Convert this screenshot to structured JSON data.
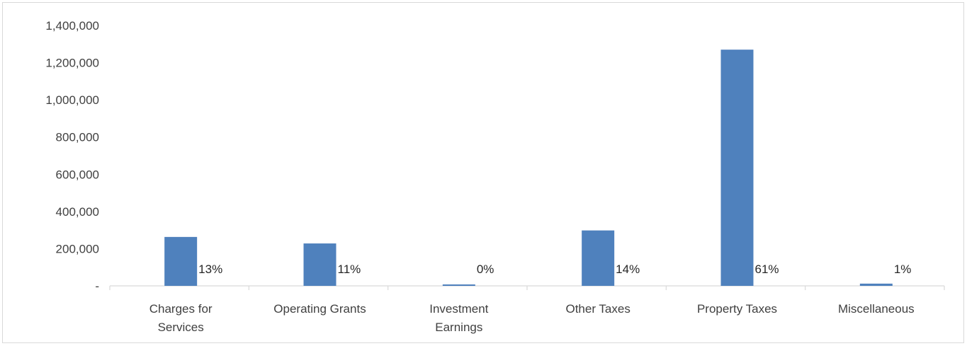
{
  "chart_data": {
    "type": "bar",
    "categories": [
      [
        "Charges for",
        "Services"
      ],
      [
        "Operating Grants"
      ],
      [
        "Investment",
        "Earnings"
      ],
      [
        "Other Taxes"
      ],
      [
        "Property Taxes"
      ],
      [
        "Miscellaneous"
      ]
    ],
    "values": [
      263000,
      228000,
      5000,
      298000,
      1270000,
      12000
    ],
    "data_labels": [
      "13%",
      "11%",
      "0%",
      "14%",
      "61%",
      "1%"
    ],
    "y_ticks": [
      "-",
      "200,000",
      "400,000",
      "600,000",
      "800,000",
      "1,000,000",
      "1,200,000",
      "1,400,000"
    ],
    "y_tick_values": [
      0,
      200000,
      400000,
      600000,
      800000,
      1000000,
      1200000,
      1400000
    ],
    "ylim": [
      0,
      1400000
    ],
    "grid": false,
    "title": "",
    "xlabel": "",
    "ylabel": "",
    "colors": {
      "bar": "#4f81bd",
      "axis": "#d9d9d9",
      "text": "#404040"
    }
  }
}
